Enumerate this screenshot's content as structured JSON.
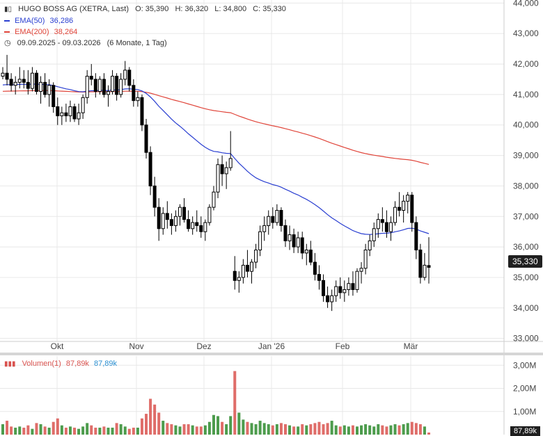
{
  "legend": {
    "title": "HUGO BOSS AG (XETRA, Last)",
    "open": "O: 35,390",
    "high": "H: 36,320",
    "low": "L: 34,800",
    "close": "C: 35,330",
    "ema50_label": "EMA(50)",
    "ema50_value": "36,286",
    "ema200_label": "EMA(200)",
    "ema200_value": "38,264",
    "range": "09.09.2025 - 09.03.2026",
    "range_note": "(6 Monate, 1 Tag)",
    "volume_label": "Volumen(1)",
    "volume_red": "87,89k",
    "volume_blue": "87,89k"
  },
  "last_price_tag": "35,330",
  "volume_tag": "87,89k",
  "colors": {
    "up": "#2e8b2e",
    "down": "#d9534f",
    "candle": "#000000",
    "ema50": "#2a3fd1",
    "ema200": "#e0453a",
    "grid": "#e8e8e8"
  },
  "chart_data": {
    "type": "candlestick",
    "price_axis": {
      "ticks": [
        "44,000",
        "43,000",
        "42,000",
        "41,000",
        "40,000",
        "39,000",
        "38,000",
        "37,000",
        "36,000",
        "35,000",
        "34,000",
        "33,000"
      ],
      "range": [
        32.9,
        44.1
      ]
    },
    "x_axis": {
      "ticks": [
        "Okt",
        "Nov",
        "Dez",
        "Jan '26",
        "Feb",
        "Mär"
      ]
    },
    "volume_axis": {
      "ticks": [
        "3,00M",
        "2,00M",
        "1,00M"
      ],
      "range": [
        0,
        3.4
      ]
    },
    "series": [
      {
        "name": "EMA(50)",
        "last": 36.286
      },
      {
        "name": "EMA(200)",
        "last": 38.264
      }
    ],
    "candles": [
      [
        41.6,
        41.9,
        41.5,
        41.7,
        0.45
      ],
      [
        41.7,
        42.3,
        41.3,
        41.5,
        0.6
      ],
      [
        41.5,
        41.7,
        41.1,
        41.3,
        0.35
      ],
      [
        41.3,
        41.6,
        41.0,
        41.4,
        0.3
      ],
      [
        41.4,
        41.9,
        41.2,
        41.5,
        0.35
      ],
      [
        41.5,
        41.8,
        41.2,
        41.4,
        0.3
      ],
      [
        41.4,
        41.8,
        41.0,
        41.2,
        0.4
      ],
      [
        41.2,
        41.9,
        41.1,
        41.7,
        0.25
      ],
      [
        41.7,
        41.8,
        41.0,
        41.1,
        0.5
      ],
      [
        41.1,
        41.6,
        40.7,
        41.4,
        0.45
      ],
      [
        41.4,
        41.7,
        40.9,
        41.0,
        0.35
      ],
      [
        41.0,
        41.5,
        40.6,
        41.3,
        0.3
      ],
      [
        41.3,
        41.4,
        40.4,
        40.6,
        0.55
      ],
      [
        40.6,
        40.9,
        40.0,
        40.3,
        0.7
      ],
      [
        40.3,
        40.6,
        40.0,
        40.4,
        0.4
      ],
      [
        40.4,
        40.7,
        40.1,
        40.3,
        0.3
      ],
      [
        40.3,
        40.8,
        40.1,
        40.6,
        0.35
      ],
      [
        40.6,
        40.7,
        40.1,
        40.2,
        0.3
      ],
      [
        40.2,
        40.7,
        40.0,
        40.4,
        0.25
      ],
      [
        40.4,
        41.0,
        40.2,
        40.9,
        0.35
      ],
      [
        40.9,
        41.8,
        40.7,
        41.6,
        0.5
      ],
      [
        41.6,
        42.0,
        41.3,
        41.5,
        0.4
      ],
      [
        41.5,
        41.7,
        40.9,
        41.1,
        0.3
      ],
      [
        41.1,
        41.6,
        41.0,
        41.5,
        0.3
      ],
      [
        41.5,
        41.7,
        40.9,
        41.0,
        0.35
      ],
      [
        41.0,
        41.3,
        40.6,
        41.1,
        0.3
      ],
      [
        41.1,
        41.8,
        41.0,
        41.6,
        0.3
      ],
      [
        41.6,
        41.7,
        40.8,
        41.0,
        0.5
      ],
      [
        41.0,
        41.7,
        40.9,
        41.5,
        0.45
      ],
      [
        41.5,
        42.1,
        41.3,
        41.8,
        0.35
      ],
      [
        41.8,
        41.9,
        41.1,
        41.3,
        0.25
      ],
      [
        41.3,
        41.5,
        40.6,
        40.8,
        0.3
      ],
      [
        40.8,
        41.1,
        40.6,
        40.9,
        0.3
      ],
      [
        40.9,
        41.0,
        39.8,
        40.0,
        0.7
      ],
      [
        40.0,
        40.2,
        38.9,
        39.1,
        0.9
      ],
      [
        39.1,
        39.3,
        37.7,
        38.0,
        1.55
      ],
      [
        38.0,
        38.3,
        37.0,
        37.3,
        1.3
      ],
      [
        37.3,
        37.6,
        36.2,
        36.6,
        0.95
      ],
      [
        36.6,
        37.3,
        36.4,
        37.1,
        0.6
      ],
      [
        37.1,
        37.5,
        36.6,
        36.9,
        0.5
      ],
      [
        36.9,
        37.1,
        36.4,
        36.7,
        0.45
      ],
      [
        36.7,
        37.2,
        36.5,
        37.0,
        0.4
      ],
      [
        37.0,
        37.4,
        36.7,
        37.3,
        0.35
      ],
      [
        37.3,
        37.6,
        36.8,
        36.9,
        0.45
      ],
      [
        36.9,
        37.2,
        36.5,
        36.6,
        0.45
      ],
      [
        36.6,
        37.0,
        36.4,
        36.8,
        0.4
      ],
      [
        36.8,
        37.2,
        36.5,
        36.7,
        0.35
      ],
      [
        36.7,
        37.0,
        36.3,
        36.5,
        0.35
      ],
      [
        36.5,
        36.9,
        36.2,
        36.8,
        0.4
      ],
      [
        36.8,
        37.4,
        36.7,
        37.3,
        0.55
      ],
      [
        37.3,
        38.0,
        37.2,
        37.8,
        0.85
      ],
      [
        37.8,
        38.9,
        37.6,
        38.7,
        0.8
      ],
      [
        38.7,
        39.0,
        38.0,
        38.4,
        0.55
      ],
      [
        38.4,
        38.8,
        37.9,
        38.6,
        0.45
      ],
      [
        38.6,
        39.8,
        38.5,
        38.9,
        0.8
      ],
      [
        35.2,
        35.7,
        34.6,
        34.9,
        2.75
      ],
      [
        34.9,
        35.2,
        34.5,
        35.0,
        0.95
      ],
      [
        35.0,
        35.6,
        34.8,
        35.4,
        0.65
      ],
      [
        35.4,
        35.9,
        35.0,
        35.2,
        0.55
      ],
      [
        35.2,
        35.6,
        34.8,
        35.5,
        0.5
      ],
      [
        35.5,
        36.1,
        35.3,
        35.9,
        0.45
      ],
      [
        35.9,
        36.7,
        35.7,
        36.5,
        0.6
      ],
      [
        36.5,
        37.0,
        36.2,
        36.7,
        0.5
      ],
      [
        36.7,
        37.2,
        36.4,
        37.0,
        0.45
      ],
      [
        37.0,
        37.3,
        36.6,
        36.8,
        0.4
      ],
      [
        36.8,
        37.4,
        36.7,
        37.2,
        0.45
      ],
      [
        37.2,
        37.3,
        36.5,
        36.7,
        0.5
      ],
      [
        36.7,
        36.9,
        36.0,
        36.2,
        0.45
      ],
      [
        36.2,
        36.7,
        35.9,
        36.4,
        0.4
      ],
      [
        36.4,
        36.6,
        35.8,
        36.0,
        0.35
      ],
      [
        36.0,
        36.5,
        35.8,
        36.3,
        0.35
      ],
      [
        36.3,
        36.5,
        35.6,
        35.8,
        0.45
      ],
      [
        35.8,
        36.1,
        35.4,
        35.9,
        0.4
      ],
      [
        35.9,
        36.2,
        35.4,
        35.5,
        0.45
      ],
      [
        35.5,
        35.8,
        34.9,
        35.1,
        0.5
      ],
      [
        35.1,
        35.4,
        34.6,
        34.9,
        0.55
      ],
      [
        34.9,
        35.1,
        34.2,
        34.4,
        0.45
      ],
      [
        34.4,
        34.7,
        34.0,
        34.2,
        0.5
      ],
      [
        34.2,
        34.6,
        33.9,
        34.4,
        0.6
      ],
      [
        34.4,
        34.9,
        34.2,
        34.7,
        0.4
      ],
      [
        34.7,
        35.0,
        34.3,
        34.5,
        0.35
      ],
      [
        34.5,
        34.9,
        34.2,
        34.6,
        0.4
      ],
      [
        34.6,
        35.0,
        34.4,
        34.8,
        0.35
      ],
      [
        34.8,
        35.2,
        34.4,
        34.6,
        0.4
      ],
      [
        34.6,
        35.3,
        34.5,
        35.2,
        0.35
      ],
      [
        35.2,
        35.5,
        34.8,
        35.3,
        0.4
      ],
      [
        35.3,
        36.1,
        35.1,
        35.9,
        0.45
      ],
      [
        35.9,
        36.4,
        35.7,
        36.2,
        0.4
      ],
      [
        36.2,
        36.8,
        36.0,
        36.6,
        0.35
      ],
      [
        36.6,
        37.1,
        36.3,
        36.9,
        0.45
      ],
      [
        36.9,
        37.3,
        36.5,
        36.8,
        0.4
      ],
      [
        36.8,
        37.2,
        36.3,
        36.5,
        0.35
      ],
      [
        36.5,
        37.0,
        36.2,
        36.8,
        0.4
      ],
      [
        36.8,
        37.5,
        36.7,
        37.3,
        0.45
      ],
      [
        37.3,
        37.8,
        37.0,
        37.2,
        0.4
      ],
      [
        37.2,
        37.7,
        36.8,
        37.5,
        0.45
      ],
      [
        37.5,
        37.8,
        37.1,
        37.7,
        0.5
      ],
      [
        37.7,
        37.8,
        36.5,
        36.8,
        0.55
      ],
      [
        36.8,
        37.0,
        35.6,
        35.9,
        0.5
      ],
      [
        35.9,
        36.1,
        34.8,
        35.0,
        0.45
      ],
      [
        35.0,
        35.8,
        34.9,
        35.4,
        0.35
      ],
      [
        35.39,
        36.32,
        34.8,
        35.33,
        0.09
      ]
    ]
  }
}
